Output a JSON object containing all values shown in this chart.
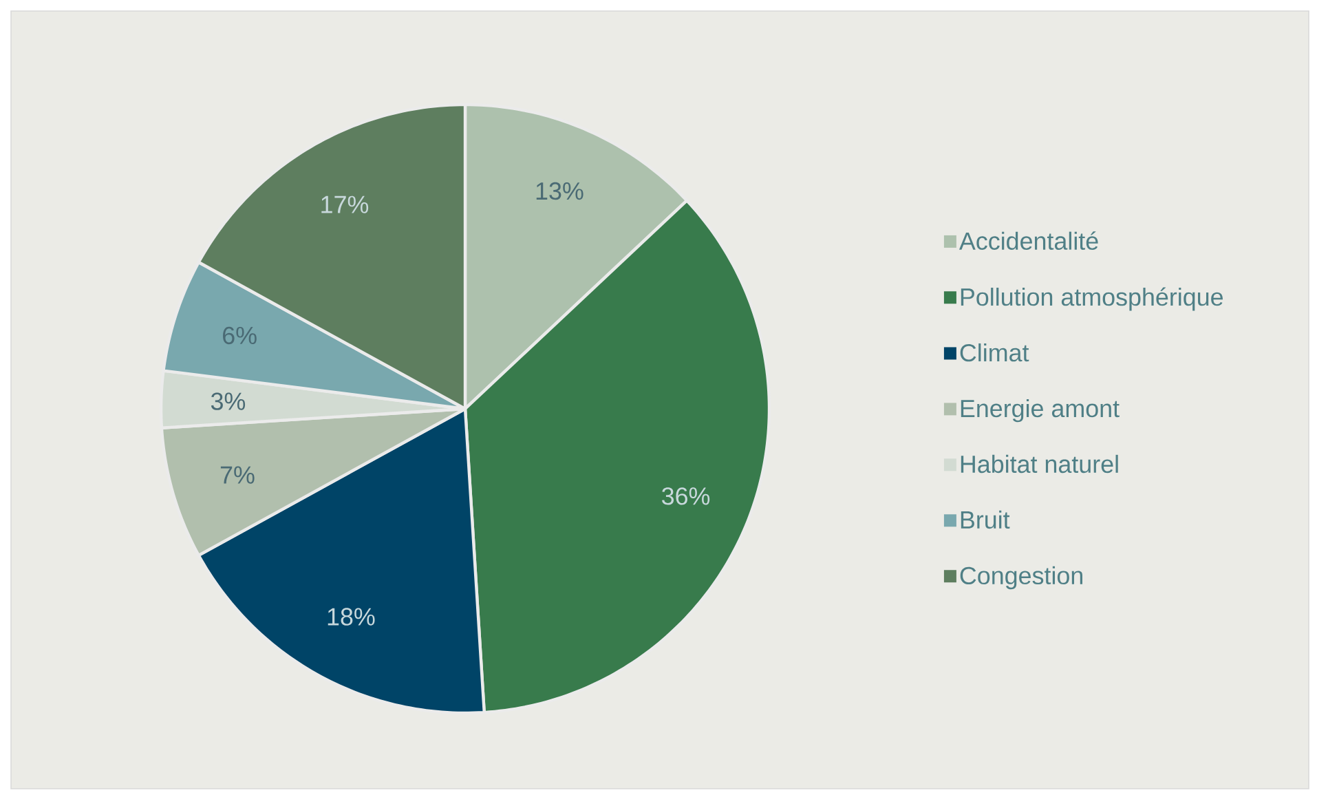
{
  "chart_data": {
    "type": "pie",
    "categories": [
      "Accidentalité",
      "Pollution atmosphérique",
      "Climat",
      "Energie amont",
      "Habitat naturel",
      "Bruit",
      "Congestion"
    ],
    "values": [
      13,
      36,
      18,
      7,
      3,
      6,
      17
    ],
    "colors": [
      "#adc1ad",
      "#387b4c",
      "#004467",
      "#b1bfad",
      "#d2dbd2",
      "#79a8ae",
      "#5e7e5f"
    ],
    "value_labels": [
      "13%",
      "36%",
      "18%",
      "7%",
      "3%",
      "6%",
      "17%"
    ],
    "legend": "right"
  }
}
